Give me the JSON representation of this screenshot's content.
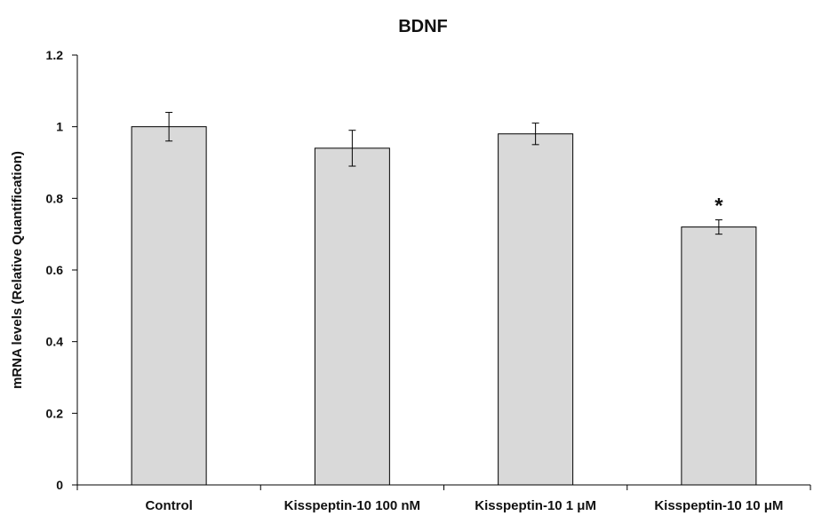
{
  "chart_data": {
    "type": "bar",
    "title": "BDNF",
    "xlabel": "",
    "ylabel": "mRNA levels (Relative Quantification)",
    "categories": [
      "Control",
      "Kisspeptin-10 100 nM",
      "Kisspeptin-10 1 μM",
      "Kisspeptin-10 10 μM"
    ],
    "values": [
      1.0,
      0.94,
      0.98,
      0.72
    ],
    "errors": [
      0.04,
      0.05,
      0.03,
      0.02
    ],
    "annotations": [
      "",
      "",
      "",
      "*"
    ],
    "ylim": [
      0,
      1.2
    ],
    "yticks": [
      0,
      0.2,
      0.4,
      0.6,
      0.8,
      1,
      1.2
    ],
    "grid": false,
    "bar_color": "#d9d9d9",
    "bar_edge_color": "#000000"
  }
}
